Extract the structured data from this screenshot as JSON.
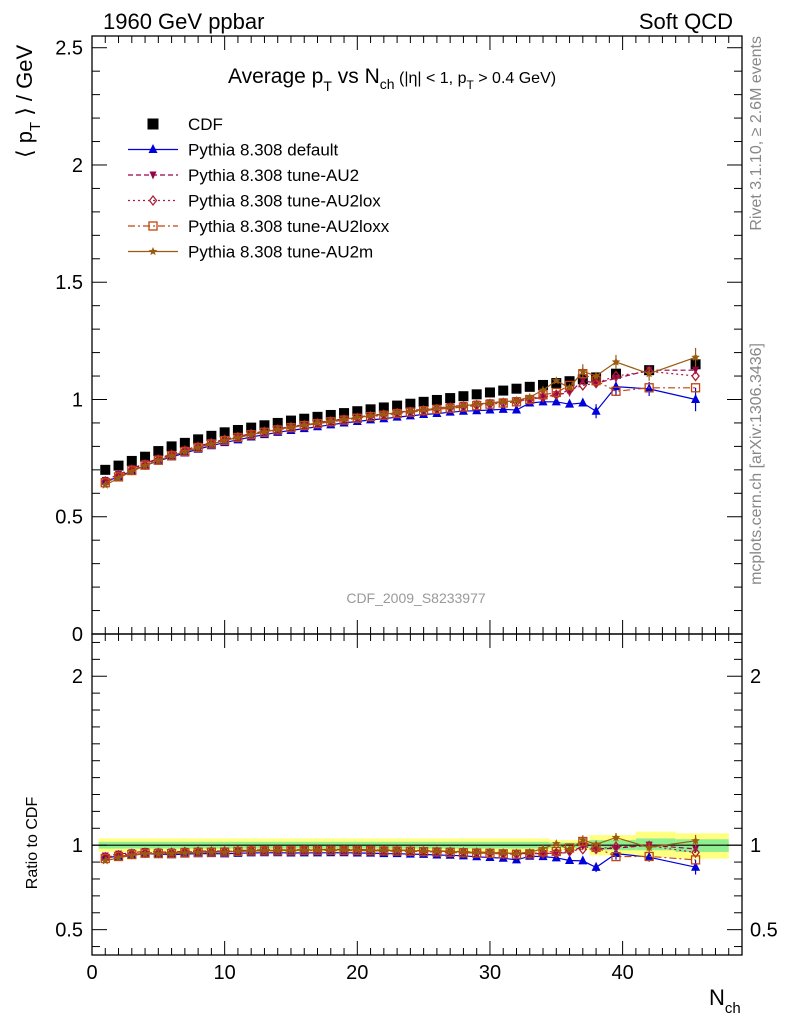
{
  "header": {
    "left": "1960 GeV ppbar",
    "right": "Soft QCD"
  },
  "side_labels": {
    "rivet": "Rivet 3.1.10, ≥ 2.6M events",
    "mcplots": "mcplots.cern.ch [arXiv:1306.3436]"
  },
  "colors": {
    "CDF": "#000000",
    "default": "#0000dd",
    "AU2": "#99004c",
    "AU2lox": "#aa1e3c",
    "AU2loxx": "#c04410",
    "AU2m": "#9a5a10",
    "band_yellow": "#ffff80",
    "band_green": "#90ee90"
  },
  "chart_data": {
    "type": "scatter",
    "title_parts": {
      "main": "Average p",
      "sub1": "T",
      "mid": " vs N",
      "sub2": "ch",
      "cut1": " (|η| < 1, p",
      "sub3": "T",
      "cut2": " > 0.4 GeV)"
    },
    "watermark": "CDF_2009_S8233977",
    "xlabel": "N",
    "xlabel_sub": "ch",
    "ylabel": "⟨ p",
    "ylabel_sub": "T",
    "ylabel_tail": " ⟩ / GeV",
    "ratio_ylabel": "Ratio to CDF",
    "xlim": [
      0,
      49
    ],
    "ylim": [
      0,
      2.55
    ],
    "ratio_ylim": [
      0.35,
      2.25
    ],
    "xticks": [
      0,
      10,
      20,
      30,
      40
    ],
    "yticks": [
      "0",
      "0.5",
      "1",
      "1.5",
      "2",
      "2.5"
    ],
    "ratio_yticks": [
      "0.5",
      "1",
      "2"
    ],
    "x": [
      1,
      2,
      3,
      4,
      5,
      6,
      7,
      8,
      9,
      10,
      11,
      12,
      13,
      14,
      15,
      16,
      17,
      18,
      19,
      20,
      21,
      22,
      23,
      24,
      25,
      26,
      27,
      28,
      29,
      30,
      31,
      32,
      33,
      34,
      35,
      36,
      37,
      38,
      39.5,
      42,
      45.5
    ],
    "series": [
      {
        "name": "CDF",
        "key": "CDF",
        "marker": "square",
        "line": "none",
        "values": [
          0.7,
          0.718,
          0.738,
          0.756,
          0.78,
          0.8,
          0.815,
          0.83,
          0.845,
          0.86,
          0.87,
          0.88,
          0.89,
          0.9,
          0.91,
          0.918,
          0.926,
          0.934,
          0.942,
          0.95,
          0.958,
          0.966,
          0.974,
          0.982,
          0.99,
          0.998,
          1.006,
          1.014,
          1.022,
          1.03,
          1.038,
          1.046,
          1.054,
          1.062,
          1.07,
          1.078,
          1.086,
          1.094,
          1.11,
          1.125,
          1.15
        ]
      },
      {
        "name": "Pythia 8.308 default",
        "key": "default",
        "marker": "triangle-up",
        "line": "solid",
        "values": [
          0.65,
          0.67,
          0.695,
          0.718,
          0.738,
          0.755,
          0.772,
          0.788,
          0.803,
          0.816,
          0.828,
          0.84,
          0.85,
          0.86,
          0.868,
          0.876,
          0.884,
          0.892,
          0.9,
          0.906,
          0.913,
          0.918,
          0.925,
          0.93,
          0.936,
          0.94,
          0.946,
          0.95,
          0.952,
          0.955,
          0.958,
          0.955,
          0.985,
          0.99,
          0.99,
          0.98,
          0.985,
          0.95,
          1.055,
          1.045,
          1.0
        ]
      },
      {
        "name": "Pythia 8.308 tune-AU2",
        "key": "AU2",
        "marker": "triangle-down",
        "line": "dashed",
        "values": [
          0.655,
          0.68,
          0.705,
          0.728,
          0.748,
          0.767,
          0.785,
          0.801,
          0.816,
          0.83,
          0.842,
          0.854,
          0.865,
          0.875,
          0.884,
          0.893,
          0.902,
          0.91,
          0.918,
          0.925,
          0.932,
          0.938,
          0.945,
          0.952,
          0.958,
          0.963,
          0.97,
          0.975,
          0.98,
          0.986,
          0.99,
          0.995,
          1.0,
          1.01,
          1.02,
          1.03,
          1.08,
          1.07,
          1.09,
          1.125,
          1.125
        ]
      },
      {
        "name": "Pythia 8.308 tune-AU2lox",
        "key": "AU2lox",
        "marker": "diamond-open",
        "line": "dotted",
        "values": [
          0.65,
          0.675,
          0.7,
          0.722,
          0.744,
          0.764,
          0.782,
          0.798,
          0.813,
          0.828,
          0.84,
          0.852,
          0.862,
          0.872,
          0.882,
          0.89,
          0.898,
          0.906,
          0.914,
          0.921,
          0.928,
          0.935,
          0.941,
          0.947,
          0.953,
          0.959,
          0.965,
          0.97,
          0.976,
          0.981,
          0.985,
          0.99,
          1.0,
          1.01,
          1.02,
          1.04,
          1.06,
          1.07,
          1.1,
          1.12,
          1.1
        ]
      },
      {
        "name": "Pythia 8.308 tune-AU2loxx",
        "key": "AU2loxx",
        "marker": "square-open",
        "line": "dashdot",
        "values": [
          0.645,
          0.67,
          0.697,
          0.72,
          0.741,
          0.76,
          0.778,
          0.795,
          0.81,
          0.825,
          0.838,
          0.85,
          0.86,
          0.87,
          0.88,
          0.889,
          0.897,
          0.905,
          0.912,
          0.92,
          0.927,
          0.933,
          0.94,
          0.946,
          0.952,
          0.958,
          0.963,
          0.968,
          0.974,
          0.98,
          0.985,
          0.99,
          1.0,
          1.02,
          1.03,
          1.06,
          1.11,
          1.08,
          1.035,
          1.05,
          1.05
        ]
      },
      {
        "name": "Pythia 8.308 tune-AU2m",
        "key": "AU2m",
        "marker": "star",
        "line": "solid",
        "values": [
          0.635,
          0.665,
          0.693,
          0.718,
          0.74,
          0.76,
          0.778,
          0.795,
          0.81,
          0.825,
          0.838,
          0.85,
          0.862,
          0.872,
          0.882,
          0.891,
          0.9,
          0.908,
          0.916,
          0.923,
          0.93,
          0.937,
          0.944,
          0.95,
          0.956,
          0.962,
          0.968,
          0.973,
          0.979,
          0.985,
          0.99,
          0.995,
          1.01,
          1.04,
          1.08,
          1.05,
          1.12,
          1.1,
          1.16,
          1.11,
          1.18
        ]
      }
    ],
    "errors": {
      "default": [
        [
          38,
          0.03
        ],
        [
          39.5,
          0.04
        ],
        [
          42,
          0.03
        ],
        [
          45.5,
          0.05
        ]
      ],
      "AU2m": [
        [
          37,
          0.03
        ],
        [
          39.5,
          0.03
        ],
        [
          42,
          0.03
        ],
        [
          45.5,
          0.04
        ]
      ]
    },
    "band_edges": [
      0.5,
      34.5,
      37.5,
      41,
      44,
      48
    ]
  }
}
